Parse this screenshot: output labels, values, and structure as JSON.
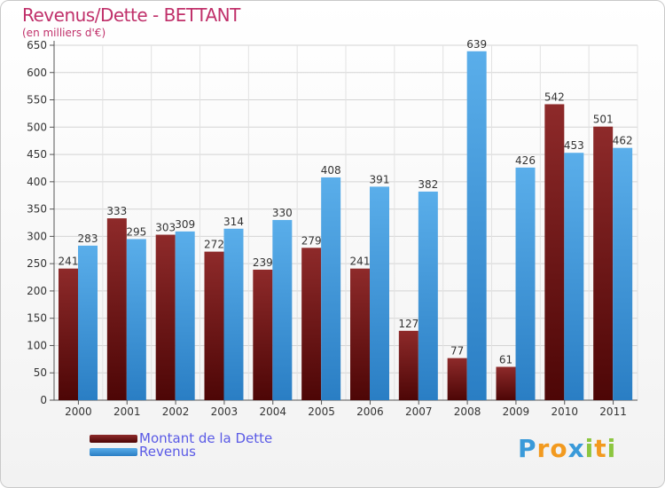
{
  "header": {
    "title": "Revenus/Dette - BETTANT",
    "subtitle": "(en milliers d'€)"
  },
  "chart_data": {
    "type": "bar",
    "title": "Revenus/Dette - BETTANT",
    "subtitle": "(en milliers d'€)",
    "categories": [
      "2000",
      "2001",
      "2002",
      "2003",
      "2004",
      "2005",
      "2006",
      "2007",
      "2008",
      "2009",
      "2010",
      "2011"
    ],
    "series": [
      {
        "name": "Montant de la Dette",
        "color": "#7a1a1a",
        "values": [
          241,
          333,
          303,
          272,
          239,
          279,
          241,
          127,
          77,
          61,
          542,
          501
        ]
      },
      {
        "name": "Revenus",
        "color": "#4fa3e2",
        "values": [
          283,
          295,
          309,
          314,
          330,
          408,
          391,
          382,
          639,
          426,
          453,
          462
        ]
      }
    ],
    "ylim": [
      0,
      650
    ],
    "yticks": [
      0,
      50,
      100,
      150,
      200,
      250,
      300,
      350,
      400,
      450,
      500,
      550,
      600,
      650
    ],
    "grid": true,
    "legend": "bottom-left"
  },
  "legend": {
    "items": [
      {
        "label": "Montant de la Dette",
        "color": "#7a1a1a"
      },
      {
        "label": "Revenus",
        "color": "#4fa3e2"
      }
    ]
  },
  "logo": {
    "letters": [
      "P",
      "r",
      "o",
      "x",
      "i",
      "t",
      "i"
    ],
    "colors": [
      "#3a9ad9",
      "#f29a1f",
      "#f29a1f",
      "#3a9ad9",
      "#8cc63f",
      "#f29a1f",
      "#8cc63f"
    ]
  }
}
